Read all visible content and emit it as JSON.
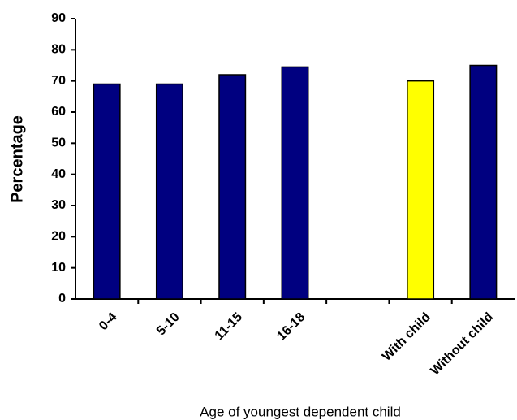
{
  "chart_data": {
    "type": "bar",
    "y_label": "Percentage",
    "x_label": "Age of youngest dependent child",
    "categories": [
      "0-4",
      "5-10",
      "11-15",
      "16-18",
      null,
      "With child",
      "Without child"
    ],
    "values": [
      69,
      69,
      72,
      74.5,
      null,
      70,
      75
    ],
    "colors": [
      "#000080",
      "#000080",
      "#000080",
      "#000080",
      null,
      "#ffff00",
      "#000080"
    ],
    "ylim": [
      0,
      90
    ],
    "yticks": [
      0,
      10,
      20,
      30,
      40,
      50,
      60,
      70,
      80,
      90
    ]
  }
}
